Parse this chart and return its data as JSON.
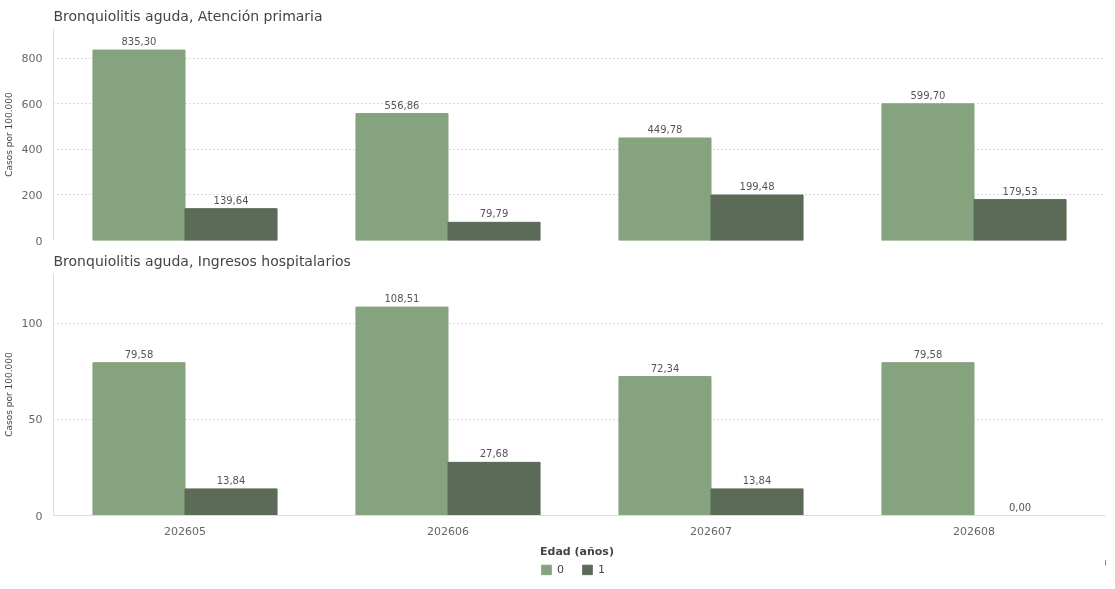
{
  "chart_data": [
    {
      "type": "bar",
      "title": "Bronquiolitis aguda, Atención primaria",
      "ylabel": "Casos por 100.000",
      "categories": [
        "202605",
        "202606",
        "202607",
        "202608"
      ],
      "ylim": [
        0,
        930
      ],
      "yticks": [
        0,
        200,
        400,
        600,
        800
      ],
      "grid": "y",
      "legend": false,
      "tick_labels": "y",
      "series": [
        {
          "color": "#86a37f",
          "values": [
            835.3,
            556.86,
            449.78,
            599.7
          ],
          "value_labels": [
            "835,30",
            "556,86",
            "449,78",
            "599,70"
          ]
        },
        {
          "color": "#5b6b58",
          "values": [
            139.64,
            79.79,
            199.48,
            179.53
          ],
          "value_labels": [
            "139,64",
            "79,79",
            "199,48",
            "179,53"
          ]
        }
      ]
    },
    {
      "type": "bar",
      "title": "Bronquiolitis aguda, Ingresos hospitalarios",
      "ylabel": "Casos por 100.000",
      "categories": [
        "202605",
        "202606",
        "202607",
        "202608"
      ],
      "ylim": [
        0,
        126
      ],
      "yticks": [
        0,
        50,
        100
      ],
      "grid": "y",
      "legend": "bottom",
      "legend_title": "Edad (años)",
      "series": [
        {
          "name": "0",
          "color": "#86a37f",
          "values": [
            79.58,
            108.51,
            72.34,
            79.58
          ],
          "value_labels": [
            "79,58",
            "108,51",
            "72,34",
            "79,58"
          ]
        },
        {
          "name": "1",
          "color": "#5b6b58",
          "values": [
            13.84,
            27.68,
            13.84,
            0.0
          ],
          "value_labels": [
            "13,84",
            "27,68",
            "13,84",
            "0,00"
          ]
        }
      ]
    }
  ]
}
